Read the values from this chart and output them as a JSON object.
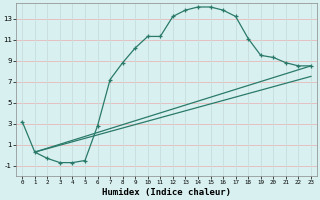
{
  "xlabel": "Humidex (Indice chaleur)",
  "bg_color": "#d8f0f0",
  "grid_color_h": "#e8b8b8",
  "grid_color_v": "#c8dede",
  "line_color": "#2a7a6a",
  "xlim": [
    -0.5,
    23.5
  ],
  "ylim": [
    -2.0,
    14.5
  ],
  "xticks": [
    0,
    1,
    2,
    3,
    4,
    5,
    6,
    7,
    8,
    9,
    10,
    11,
    12,
    13,
    14,
    15,
    16,
    17,
    18,
    19,
    20,
    21,
    22,
    23
  ],
  "yticks": [
    -1,
    1,
    3,
    5,
    7,
    9,
    11,
    13
  ],
  "line1_x": [
    0,
    1,
    2,
    3,
    4,
    5,
    6,
    7,
    8,
    9,
    10,
    11,
    12,
    13,
    14,
    15,
    16,
    17,
    18,
    19,
    20,
    21,
    22,
    23
  ],
  "line1_y": [
    3.2,
    0.3,
    -0.3,
    -0.7,
    -0.7,
    -0.5,
    2.8,
    7.2,
    8.8,
    10.2,
    11.3,
    11.3,
    13.2,
    13.8,
    14.1,
    14.1,
    13.8,
    13.2,
    11.1,
    9.5,
    9.3,
    8.8,
    8.5,
    8.5
  ],
  "line2_x": [
    1,
    23
  ],
  "line2_y": [
    0.3,
    8.5
  ],
  "line3_x": [
    1,
    23
  ],
  "line3_y": [
    0.3,
    7.5
  ]
}
